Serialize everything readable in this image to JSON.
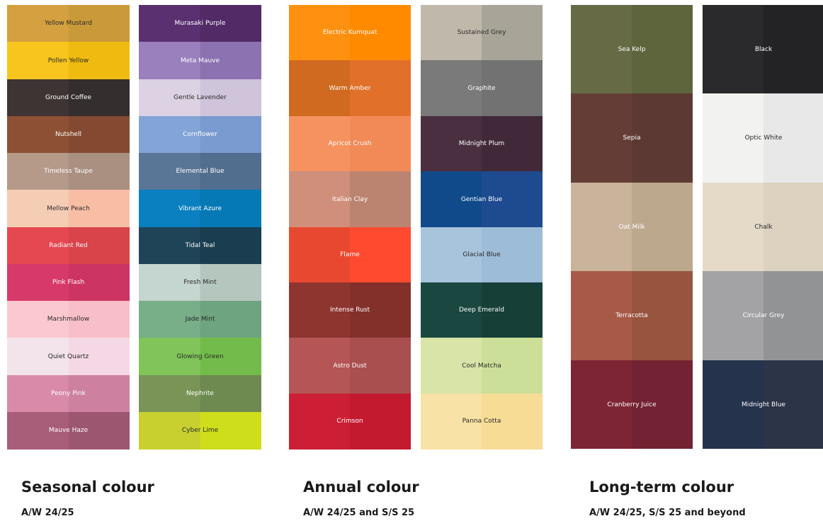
{
  "groups": [
    {
      "title": "Seasonal colour",
      "subtitle": "A/W 24/25",
      "columns": [
        [
          {
            "name": "Yellow Mustard",
            "color": [
              "#d4a040",
              "#c99a3a"
            ],
            "text": "#2a2a2a"
          },
          {
            "name": "Pollen Yellow",
            "color": [
              "#f7c51e",
              "#f0bb10"
            ],
            "text": "#2a2a2a"
          },
          {
            "name": "Ground Coffee",
            "color": [
              "#3d3433",
              "#352e2e"
            ],
            "text": "#ffffff"
          },
          {
            "name": "Nutshell",
            "color": [
              "#8e5035",
              "#844a31"
            ],
            "text": "#ffffff"
          },
          {
            "name": "Timeless Taupe",
            "color": [
              "#b59a8a",
              "#a99080"
            ],
            "text": "#ffffff"
          },
          {
            "name": "Mellow Peach",
            "color": [
              "#f5cdb5",
              "#f8bea5"
            ],
            "text": "#2a2a2a"
          },
          {
            "name": "Radiant Red",
            "color": [
              "#e54850",
              "#d9434a"
            ],
            "text": "#ffffff"
          },
          {
            "name": "Pink Flash",
            "color": [
              "#d73a6a",
              "#cc3464"
            ],
            "text": "#ffffff"
          },
          {
            "name": "Marshmallow",
            "color": [
              "#fcc8d0",
              "#f8bfc8"
            ],
            "text": "#2a2a2a"
          },
          {
            "name": "Quiet Quartz",
            "color": [
              "#f2e4ea",
              "#f5d8e5"
            ],
            "text": "#2a2a2a"
          },
          {
            "name": "Peony Pink",
            "color": [
              "#d98aa8",
              "#cd809f"
            ],
            "text": "#ffffff"
          },
          {
            "name": "Mauve Haze",
            "color": [
              "#a85d78",
              "#9d5670"
            ],
            "text": "#ffffff"
          }
        ],
        [
          {
            "name": "Murasaki Purple",
            "color": [
              "#5a3070",
              "#512a66"
            ],
            "text": "#ffffff"
          },
          {
            "name": "Meta Mauve",
            "color": [
              "#9a80bd",
              "#8c72b0"
            ],
            "text": "#ffffff"
          },
          {
            "name": "Gentle Lavender",
            "color": [
              "#dcd2e3",
              "#cfc4d9"
            ],
            "text": "#2a2a2a"
          },
          {
            "name": "Cornflower",
            "color": [
              "#82a4d6",
              "#7a9bd0"
            ],
            "text": "#ffffff"
          },
          {
            "name": "Elemental Blue",
            "color": [
              "#5a7696",
              "#526e8e"
            ],
            "text": "#ffffff"
          },
          {
            "name": "Vibrant Azure",
            "color": [
              "#0a80c0",
              "#0479b5"
            ],
            "text": "#ffffff"
          },
          {
            "name": "Tidal Teal",
            "color": [
              "#1f4458",
              "#1a3d50"
            ],
            "text": "#ffffff"
          },
          {
            "name": "Fresh Mint",
            "color": [
              "#c5d5cf",
              "#b5c6bf"
            ],
            "text": "#2a2a2a"
          },
          {
            "name": "Jade Mint",
            "color": [
              "#78ae88",
              "#6ea47f"
            ],
            "text": "#2a2a2a"
          },
          {
            "name": "Glowing Green",
            "color": [
              "#80c45a",
              "#73bc4c"
            ],
            "text": "#2a2a2a"
          },
          {
            "name": "Nephrite",
            "color": [
              "#7a9458",
              "#6e8a50"
            ],
            "text": "#ffffff"
          },
          {
            "name": "Cyber Lime",
            "color": [
              "#c8d030",
              "#cede1a"
            ],
            "text": "#2a2a2a"
          }
        ]
      ]
    },
    {
      "title": "Annual colour",
      "subtitle": "A/W 24/25 and S/S 25",
      "columns": [
        [
          {
            "name": "Electric Kumquat",
            "color": [
              "#ff9010",
              "#ff8a00"
            ],
            "text": "#ffffff"
          },
          {
            "name": "Warm Amber",
            "color": [
              "#d06a20",
              "#e0702a"
            ],
            "text": "#ffffff"
          },
          {
            "name": "Apricot Crush",
            "color": [
              "#f59260",
              "#f28a58"
            ],
            "text": "#ffffff"
          },
          {
            "name": "Italian Clay",
            "color": [
              "#cf8f7a",
              "#bb8470"
            ],
            "text": "#ffffff"
          },
          {
            "name": "Flame",
            "color": [
              "#e84830",
              "#ff4a30"
            ],
            "text": "#ffffff"
          },
          {
            "name": "Intense Rust",
            "color": [
              "#8e3530",
              "#83302b"
            ],
            "text": "#ffffff"
          },
          {
            "name": "Astro Dust",
            "color": [
              "#b55555",
              "#aa4f50"
            ],
            "text": "#ffffff"
          },
          {
            "name": "Crimson",
            "color": [
              "#cc1f35",
              "#c41a30"
            ],
            "text": "#ffffff"
          }
        ],
        [
          {
            "name": "Sustained Grey",
            "color": [
              "#c0b8ab",
              "#a8a598"
            ],
            "text": "#2a2a2a"
          },
          {
            "name": "Graphite",
            "color": [
              "#7a7a7a",
              "#727272"
            ],
            "text": "#ffffff"
          },
          {
            "name": "Midnight Plum",
            "color": [
              "#4a2f40",
              "#42293a"
            ],
            "text": "#ffffff"
          },
          {
            "name": "Gentian Blue",
            "color": [
              "#104a8a",
              "#1e4b90"
            ],
            "text": "#ffffff"
          },
          {
            "name": "Glacial Blue",
            "color": [
              "#a8c4dc",
              "#9cbcd8"
            ],
            "text": "#2a2a2a"
          },
          {
            "name": "Deep Emerald",
            "color": [
              "#1a4840",
              "#163f38"
            ],
            "text": "#ffffff"
          },
          {
            "name": "Cool Matcha",
            "color": [
              "#d8e4a8",
              "#ccdf98"
            ],
            "text": "#2a2a2a"
          },
          {
            "name": "Panna Cotta",
            "color": [
              "#f8e2a5",
              "#f7dc95"
            ],
            "text": "#2a2a2a"
          }
        ]
      ]
    },
    {
      "title": "Long-term colour",
      "subtitle": "A/W 24/25, S/S 25 and beyond",
      "columns": [
        [
          {
            "name": "Sea Kelp",
            "color": [
              "#676b45",
              "#5e643c"
            ],
            "text": "#ffffff"
          },
          {
            "name": "Sepia",
            "color": [
              "#643e36",
              "#5c3a33"
            ],
            "text": "#ffffff"
          },
          {
            "name": "Oat Milk",
            "color": [
              "#c9b39a",
              "#bca88c"
            ],
            "text": "#ffffff"
          },
          {
            "name": "Terracotta",
            "color": [
              "#a85a48",
              "#99543f"
            ],
            "text": "#ffffff"
          },
          {
            "name": "Cranberry Juice",
            "color": [
              "#7d2535",
              "#722232"
            ],
            "text": "#ffffff"
          }
        ],
        [
          {
            "name": "Black",
            "color": [
              "#2a2a2c",
              "#232325"
            ],
            "text": "#ffffff"
          },
          {
            "name": "Optic White",
            "color": [
              "#f2f2f0",
              "#e8e8e8"
            ],
            "text": "#2a2a2a"
          },
          {
            "name": "Chalk",
            "color": [
              "#e5dac8",
              "#ddd2bf"
            ],
            "text": "#2a2a2a"
          },
          {
            "name": "Circular Grey",
            "color": [
              "#a3a3a5",
              "#929394"
            ],
            "text": "#ffffff"
          },
          {
            "name": "Midnight Blue",
            "color": [
              "#26334d",
              "#2c3448"
            ],
            "text": "#ffffff"
          }
        ]
      ]
    }
  ]
}
